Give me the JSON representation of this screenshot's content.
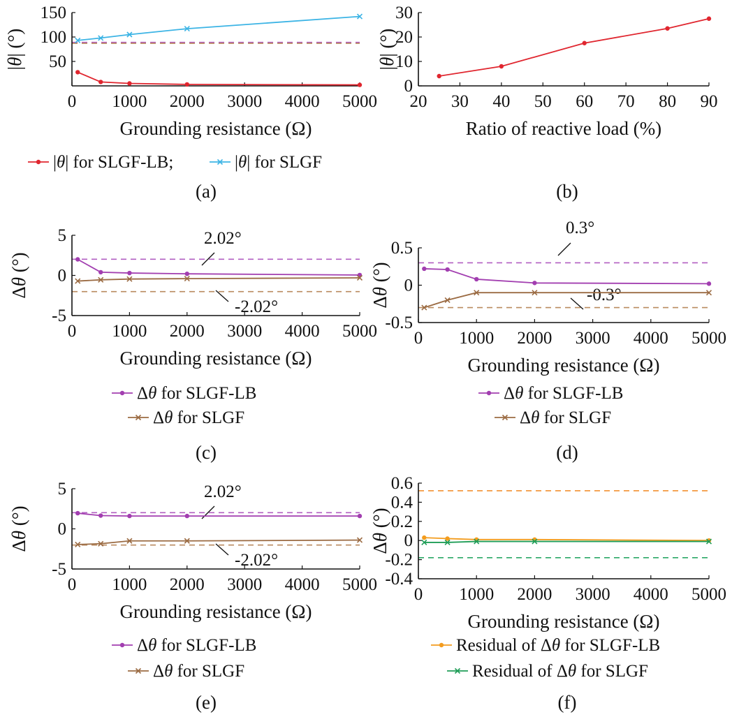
{
  "colors": {
    "red": "#e0262f",
    "cyan": "#3cb4e5",
    "purple": "#a23eb0",
    "brown": "#9b6b43",
    "orange": "#f39c1e",
    "green": "#1f9d57",
    "dash_purple": "#b25fc1",
    "dash_brown": "#b98a5f",
    "dash_orange": "#f29130",
    "dash_green": "#2aa866"
  },
  "chart_data": [
    {
      "id": "a",
      "type": "line",
      "caption": "(a)",
      "xlabel": "Grounding resistance (Ω)",
      "ylabel": "|θ| (°)",
      "x_ticks": [
        0,
        1000,
        2000,
        3000,
        4000,
        5000
      ],
      "y_ticks": [
        50,
        100,
        150
      ],
      "xlim": [
        0,
        5000
      ],
      "ylim": [
        0,
        150
      ],
      "legend": [
        "|θ| for SLGF-LB;",
        "|θ| for SLGF"
      ],
      "series": [
        {
          "name": "|θ| for SLGF-LB",
          "color": "red",
          "marker": "dot",
          "x": [
            100,
            500,
            1000,
            2000,
            5000
          ],
          "y": [
            28,
            8,
            5,
            3,
            2
          ]
        },
        {
          "name": "|θ| for SLGF",
          "color": "cyan",
          "marker": "x",
          "x": [
            100,
            500,
            1000,
            2000,
            5000
          ],
          "y": [
            93,
            98,
            105,
            117,
            142
          ]
        }
      ],
      "reference_lines": [
        {
          "y": 89,
          "color": "dash_purple"
        },
        {
          "y": 87,
          "color": "dash_brown"
        }
      ]
    },
    {
      "id": "b",
      "type": "line",
      "caption": "(b)",
      "xlabel": "Ratio of reactive load (%)",
      "ylabel": "|θ| (°)",
      "x_ticks": [
        20,
        30,
        40,
        50,
        60,
        70,
        80,
        90
      ],
      "y_ticks": [
        0,
        10,
        20,
        30
      ],
      "xlim": [
        20,
        90
      ],
      "ylim": [
        0,
        30
      ],
      "series": [
        {
          "color": "red",
          "marker": "dot",
          "x": [
            25,
            40,
            60,
            80,
            90
          ],
          "y": [
            4,
            8,
            17.5,
            23.5,
            27.5
          ]
        }
      ]
    },
    {
      "id": "c",
      "type": "line",
      "caption": "(c)",
      "xlabel": "Grounding resistance (Ω)",
      "ylabel": "Δθ (°)",
      "x_ticks": [
        0,
        1000,
        2000,
        3000,
        4000,
        5000
      ],
      "y_ticks": [
        -5,
        0,
        5
      ],
      "xlim": [
        0,
        5000
      ],
      "ylim": [
        -5,
        5
      ],
      "legend": [
        "Δθ for SLGF-LB",
        "Δθ for SLGF"
      ],
      "series": [
        {
          "name": "Δθ for SLGF-LB",
          "color": "purple",
          "marker": "dot",
          "x": [
            100,
            500,
            1000,
            2000,
            5000
          ],
          "y": [
            2.0,
            0.4,
            0.3,
            0.2,
            0.05
          ]
        },
        {
          "name": "Δθ for SLGF",
          "color": "brown",
          "marker": "x",
          "x": [
            100,
            500,
            1000,
            2000,
            5000
          ],
          "y": [
            -0.7,
            -0.55,
            -0.45,
            -0.4,
            -0.3
          ]
        }
      ],
      "reference_lines": [
        {
          "y": 2.02,
          "color": "dash_purple",
          "label": "2.02°"
        },
        {
          "y": -2.02,
          "color": "dash_brown",
          "label": "-2.02°"
        }
      ]
    },
    {
      "id": "d",
      "type": "line",
      "caption": "(d)",
      "xlabel": "Grounding resistance (Ω)",
      "ylabel": "Δθ (°)",
      "x_ticks": [
        0,
        1000,
        2000,
        3000,
        4000,
        5000
      ],
      "y_ticks": [
        -0.5,
        0,
        0.5
      ],
      "xlim": [
        0,
        5000
      ],
      "ylim": [
        -0.5,
        0.5
      ],
      "legend": [
        "Δθ for SLGF-LB",
        "Δθ for SLGF"
      ],
      "series": [
        {
          "name": "Δθ for SLGF-LB",
          "color": "purple",
          "marker": "dot",
          "x": [
            100,
            500,
            1000,
            2000,
            5000
          ],
          "y": [
            0.22,
            0.21,
            0.08,
            0.03,
            0.02
          ]
        },
        {
          "name": "Δθ for SLGF",
          "color": "brown",
          "marker": "x",
          "x": [
            100,
            500,
            1000,
            2000,
            5000
          ],
          "y": [
            -0.3,
            -0.2,
            -0.1,
            -0.1,
            -0.1
          ]
        }
      ],
      "reference_lines": [
        {
          "y": 0.3,
          "color": "dash_purple",
          "label": "0.3°"
        },
        {
          "y": -0.3,
          "color": "dash_brown",
          "label": "-0.3°"
        }
      ]
    },
    {
      "id": "e",
      "type": "line",
      "caption": "(e)",
      "xlabel": "Grounding resistance (Ω)",
      "ylabel": "Δθ (°)",
      "x_ticks": [
        0,
        1000,
        2000,
        3000,
        4000,
        5000
      ],
      "y_ticks": [
        -5,
        0,
        5
      ],
      "xlim": [
        0,
        5000
      ],
      "ylim": [
        -5,
        5
      ],
      "legend": [
        "Δθ for SLGF-LB",
        "Δθ for SLGF"
      ],
      "series": [
        {
          "name": "Δθ for SLGF-LB",
          "color": "purple",
          "marker": "dot",
          "x": [
            100,
            500,
            1000,
            2000,
            5000
          ],
          "y": [
            1.95,
            1.65,
            1.6,
            1.6,
            1.6
          ]
        },
        {
          "name": "Δθ for SLGF",
          "color": "brown",
          "marker": "x",
          "x": [
            100,
            500,
            1000,
            2000,
            5000
          ],
          "y": [
            -1.95,
            -1.85,
            -1.5,
            -1.5,
            -1.4
          ]
        }
      ],
      "reference_lines": [
        {
          "y": 2.02,
          "color": "dash_purple",
          "label": "2.02°"
        },
        {
          "y": -2.02,
          "color": "dash_brown",
          "label": "-2.02°"
        }
      ]
    },
    {
      "id": "f",
      "type": "line",
      "caption": "(f)",
      "xlabel": "Grounding resistance (Ω)",
      "ylabel": "Δθ (°)",
      "x_ticks": [
        0,
        1000,
        2000,
        3000,
        4000,
        5000
      ],
      "y_ticks": [
        -0.4,
        -0.2,
        0,
        0.2,
        0.4,
        0.6
      ],
      "xlim": [
        0,
        5000
      ],
      "ylim": [
        -0.4,
        0.6
      ],
      "legend": [
        "Residual of Δθ for SLGF-LB",
        "Residual of Δθ for SLGF"
      ],
      "series": [
        {
          "name": "Residual of Δθ for SLGF-LB",
          "color": "orange",
          "marker": "dot",
          "x": [
            100,
            500,
            1000,
            2000,
            5000
          ],
          "y": [
            0.03,
            0.02,
            0.01,
            0.01,
            0.0
          ]
        },
        {
          "name": "Residual of Δθ for SLGF",
          "color": "green",
          "marker": "x",
          "x": [
            100,
            500,
            1000,
            2000,
            5000
          ],
          "y": [
            -0.02,
            -0.02,
            -0.01,
            -0.01,
            -0.01
          ]
        }
      ],
      "reference_lines": [
        {
          "y": 0.52,
          "color": "dash_orange"
        },
        {
          "y": -0.18,
          "color": "dash_green"
        }
      ]
    }
  ]
}
